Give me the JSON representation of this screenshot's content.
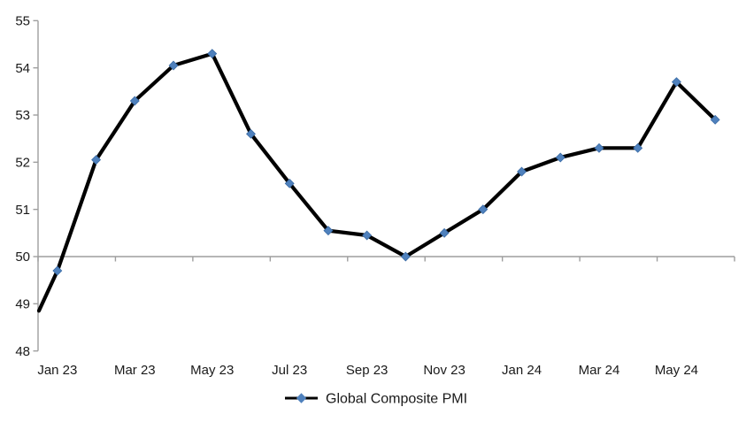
{
  "chart_data": {
    "type": "line",
    "title": "",
    "series": [
      {
        "name": "Global Composite PMI",
        "line_color": "#000000",
        "marker_color": "#4f81bd",
        "marker_edge_color": "#3a6ba5",
        "marker_shape": "diamond",
        "categories": [
          "Jan 23",
          "Feb 23",
          "Mar 23",
          "Apr 23",
          "May 23",
          "Jun 23",
          "Jul 23",
          "Aug 23",
          "Sep 23",
          "Oct 23",
          "Nov 23",
          "Dec 23",
          "Jan 24",
          "Feb 24",
          "Mar 24",
          "Apr 24",
          "May 24",
          "Jun 24"
        ],
        "values": [
          49.7,
          52.05,
          53.3,
          54.05,
          54.3,
          52.6,
          51.55,
          50.55,
          50.45,
          50.0,
          50.5,
          51.0,
          51.8,
          52.1,
          52.3,
          52.3,
          53.7,
          52.9
        ]
      }
    ],
    "clipped_lead_in_value_at_left_edge": 48.85,
    "x_tick_labels": [
      "Jan 23",
      "Mar 23",
      "May 23",
      "Jul 23",
      "Sep 23",
      "Nov 23",
      "Jan 24",
      "Mar 24",
      "May 24"
    ],
    "y_ticks": [
      48,
      49,
      50,
      51,
      52,
      53,
      54,
      55
    ],
    "ylim": [
      48,
      55
    ],
    "category_axis_crosses_at": 50,
    "x_major_unit_months": 2,
    "grid": "off",
    "legend_position": "bottom-center",
    "axis_color": "#9e9e9e",
    "label_color": "#1a1a1a"
  }
}
